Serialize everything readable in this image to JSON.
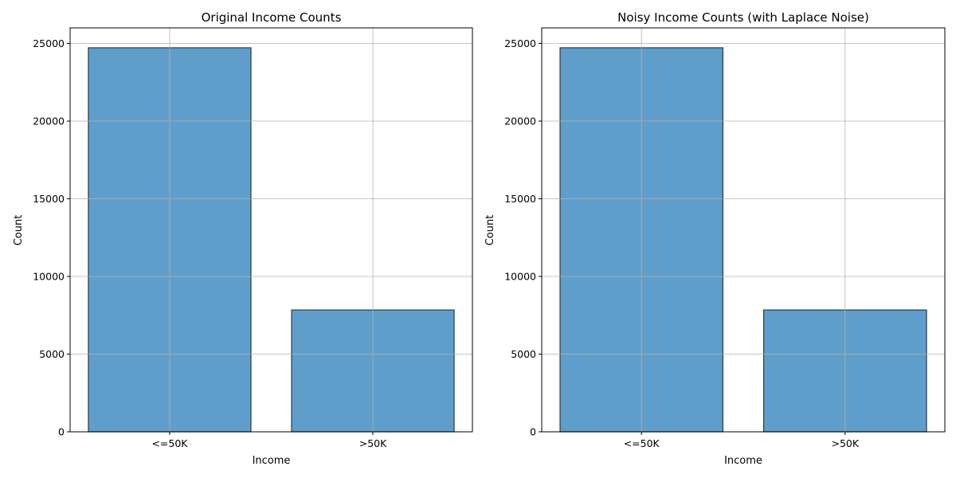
{
  "chart_data": [
    {
      "type": "bar",
      "title": "Original Income Counts",
      "xlabel": "Income",
      "ylabel": "Count",
      "categories": [
        "<=50K",
        ">50K"
      ],
      "values": [
        24720,
        7841
      ],
      "ylim": [
        0,
        26000
      ],
      "yticks": [
        0,
        5000,
        10000,
        15000,
        20000,
        25000
      ],
      "ytick_labels": [
        "0",
        "5000",
        "10000",
        "15000",
        "20000",
        "25000"
      ],
      "grid": true,
      "bar_color": "#5f9ecb",
      "edge_color": "#2a3a45"
    },
    {
      "type": "bar",
      "title": "Noisy Income Counts (with Laplace Noise)",
      "xlabel": "Income",
      "ylabel": "Count",
      "categories": [
        "<=50K",
        ">50K"
      ],
      "values": [
        24721,
        7842
      ],
      "ylim": [
        0,
        26000
      ],
      "yticks": [
        0,
        5000,
        10000,
        15000,
        20000,
        25000
      ],
      "ytick_labels": [
        "0",
        "5000",
        "10000",
        "15000",
        "20000",
        "25000"
      ],
      "grid": true,
      "bar_color": "#5f9ecb",
      "edge_color": "#2a3a45"
    }
  ]
}
